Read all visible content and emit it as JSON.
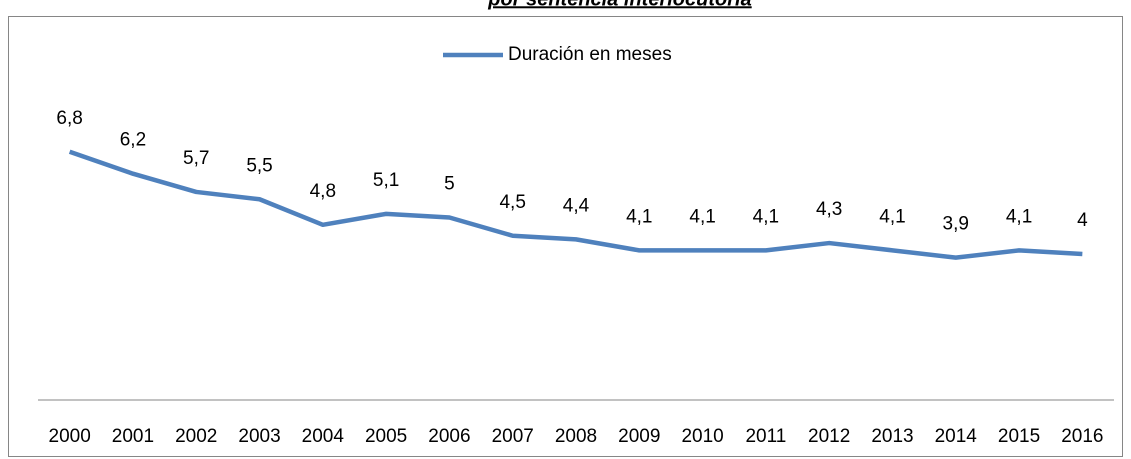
{
  "chart_data": {
    "type": "line",
    "title": "por sentencia interlocutoria",
    "categories": [
      "2000",
      "2001",
      "2002",
      "2003",
      "2004",
      "2005",
      "2006",
      "2007",
      "2008",
      "2009",
      "2010",
      "2011",
      "2012",
      "2013",
      "2014",
      "2015",
      "2016"
    ],
    "series": [
      {
        "name": "Duración en meses",
        "color": "#4f81bd",
        "values": [
          6.8,
          6.2,
          5.7,
          5.5,
          4.8,
          5.1,
          5,
          4.5,
          4.4,
          4.1,
          4.1,
          4.1,
          4.3,
          4.1,
          3.9,
          4.1,
          4
        ],
        "value_labels": [
          "6,8",
          "6,2",
          "5,7",
          "5,5",
          "4,8",
          "5,1",
          "5",
          "4,5",
          "4,4",
          "4,1",
          "4,1",
          "4,1",
          "4,3",
          "4,1",
          "3,9",
          "4,1",
          "4"
        ]
      }
    ],
    "ylim": [
      0,
      8
    ],
    "legend": "top"
  }
}
